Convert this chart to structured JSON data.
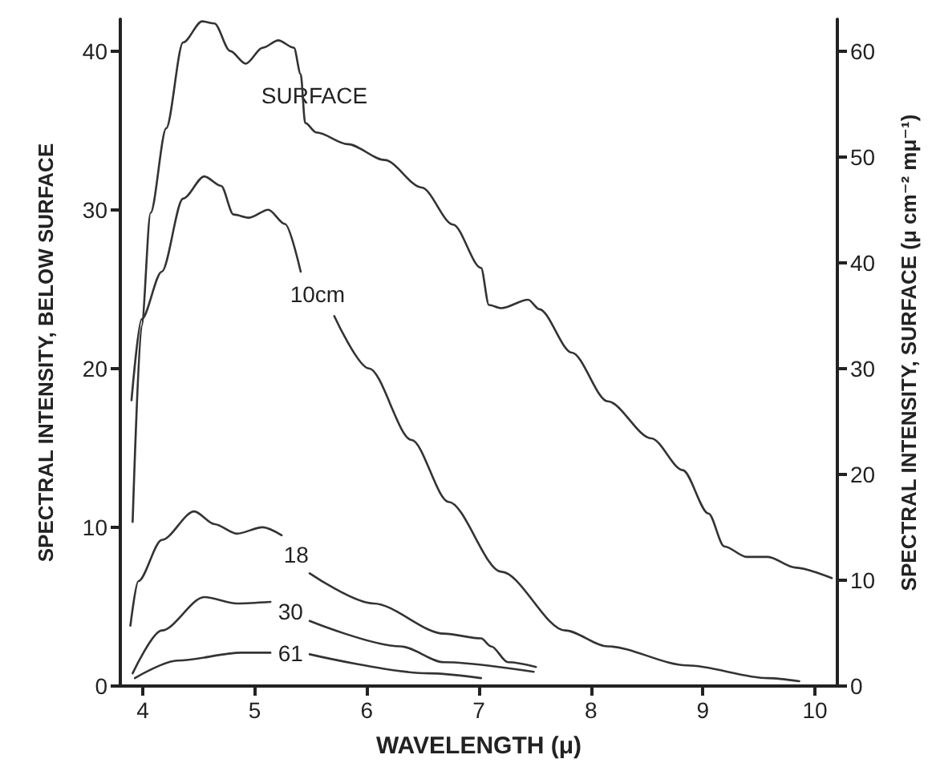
{
  "chart_data": {
    "type": "line",
    "xlabel": "WAVELENGTH (μ)",
    "ylabel": "SPECTRAL INTENSITY, BELOW SURFACE",
    "y2label": "SPECTRAL INTENSITY, SURFACE (μ cm⁻² mμ⁻¹)",
    "xlim": [
      3.8,
      10.2
    ],
    "xticks": [
      4,
      5,
      6,
      7,
      8,
      9,
      10
    ],
    "ylim": [
      0,
      42
    ],
    "yticks": [
      0,
      10,
      20,
      30,
      40
    ],
    "y2lim": [
      0,
      63
    ],
    "y2ticks": [
      0,
      10,
      20,
      30,
      40,
      50,
      60
    ],
    "grid": false,
    "legend": false,
    "marker": "none",
    "line_style": "solid",
    "series": [
      {
        "name": "SURFACE",
        "axis": "y2",
        "color": "#333333",
        "x": [
          3.91,
          3.99,
          4.07,
          4.21,
          4.36,
          4.53,
          4.64,
          4.78,
          4.92,
          5.07,
          5.21,
          5.35,
          5.41,
          5.45,
          5.55,
          5.83,
          6.16,
          6.49,
          6.77,
          7.02,
          7.09,
          7.2,
          7.44,
          7.54,
          7.83,
          8.15,
          8.54,
          8.82,
          9.05,
          9.19,
          9.39,
          9.58,
          9.82,
          10.15
        ],
        "values": [
          15.5,
          34,
          44.7,
          52.7,
          60.8,
          62.8,
          62.6,
          60,
          58.8,
          60.3,
          61,
          60.3,
          57.8,
          53.2,
          52.3,
          51.2,
          49.7,
          47.1,
          43.6,
          39.5,
          36,
          35.7,
          36.5,
          35.6,
          31.5,
          26.9,
          23.4,
          20.4,
          16.3,
          13.2,
          12.2,
          12.2,
          11.2,
          10.2
        ]
      },
      {
        "name": "10cm",
        "color": "#333333",
        "x": [
          3.9,
          3.99,
          4.17,
          4.36,
          4.55,
          4.7,
          4.81,
          4.95,
          5.12,
          5.27,
          5.41,
          5.56,
          5.71,
          6.02,
          6.4,
          6.73,
          7.2,
          7.77,
          8.15,
          8.86,
          9.58,
          9.86
        ],
        "values": [
          18,
          23.1,
          26.1,
          30.7,
          32.1,
          31.5,
          29.7,
          29.5,
          30,
          29.1,
          26.1,
          null,
          23.3,
          20,
          15.5,
          11.6,
          7.2,
          3.5,
          2.5,
          1.3,
          0.5,
          0.3
        ]
      },
      {
        "name": "18",
        "color": "#333333",
        "x": [
          3.89,
          3.96,
          4.17,
          4.46,
          4.64,
          4.84,
          5.07,
          5.24,
          5.37,
          5.49,
          6.06,
          6.69,
          7.02,
          7.11,
          7.26,
          7.51
        ],
        "values": [
          3.8,
          6.6,
          9.2,
          11,
          10.2,
          9.6,
          10,
          9.5,
          null,
          7.1,
          5.2,
          3.3,
          3.0,
          2.5,
          1.5,
          1.2
        ]
      },
      {
        "name": "30",
        "color": "#333333",
        "x": [
          3.91,
          4.17,
          4.55,
          4.84,
          5.14,
          5.32,
          5.49,
          6.3,
          6.69,
          7.49
        ],
        "values": [
          0.8,
          3.5,
          5.6,
          5.2,
          5.3,
          null,
          4.1,
          2.5,
          1.5,
          0.9
        ]
      },
      {
        "name": "61",
        "color": "#333333",
        "x": [
          3.93,
          4.31,
          4.88,
          5.14,
          5.32,
          5.49,
          6.55,
          7.02
        ],
        "values": [
          0.5,
          1.6,
          2.1,
          2.1,
          null,
          2.0,
          0.8,
          0.5
        ]
      }
    ]
  }
}
